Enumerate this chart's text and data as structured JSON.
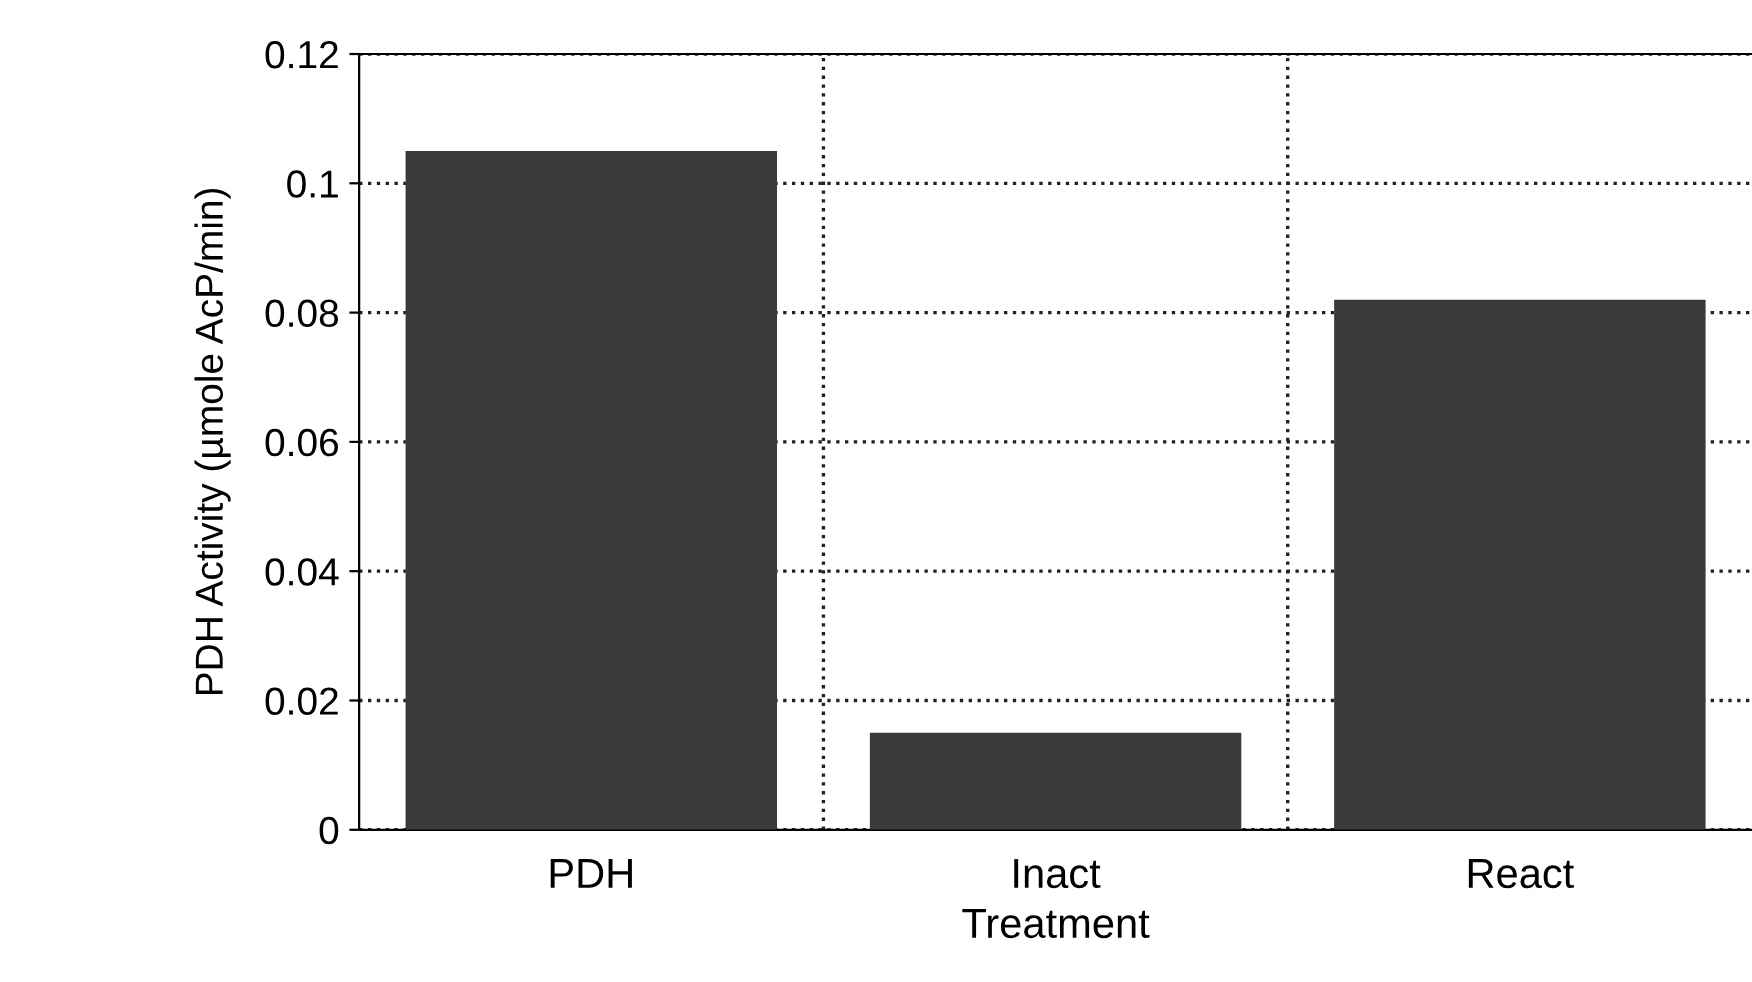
{
  "chart_data": {
    "type": "bar",
    "xlabel": "Treatment",
    "ylabel": "PDH Activity (µmole AcP/min)",
    "categories": [
      "PDH",
      "Inact",
      "React"
    ],
    "values": [
      0.105,
      0.015,
      0.082
    ],
    "color": "#3a3a3a",
    "ylim": [
      0,
      0.12
    ],
    "yticks": [
      0,
      0.02,
      0.04,
      0.06,
      0.08,
      0.1,
      0.12
    ],
    "grid": true,
    "legend": false
  }
}
